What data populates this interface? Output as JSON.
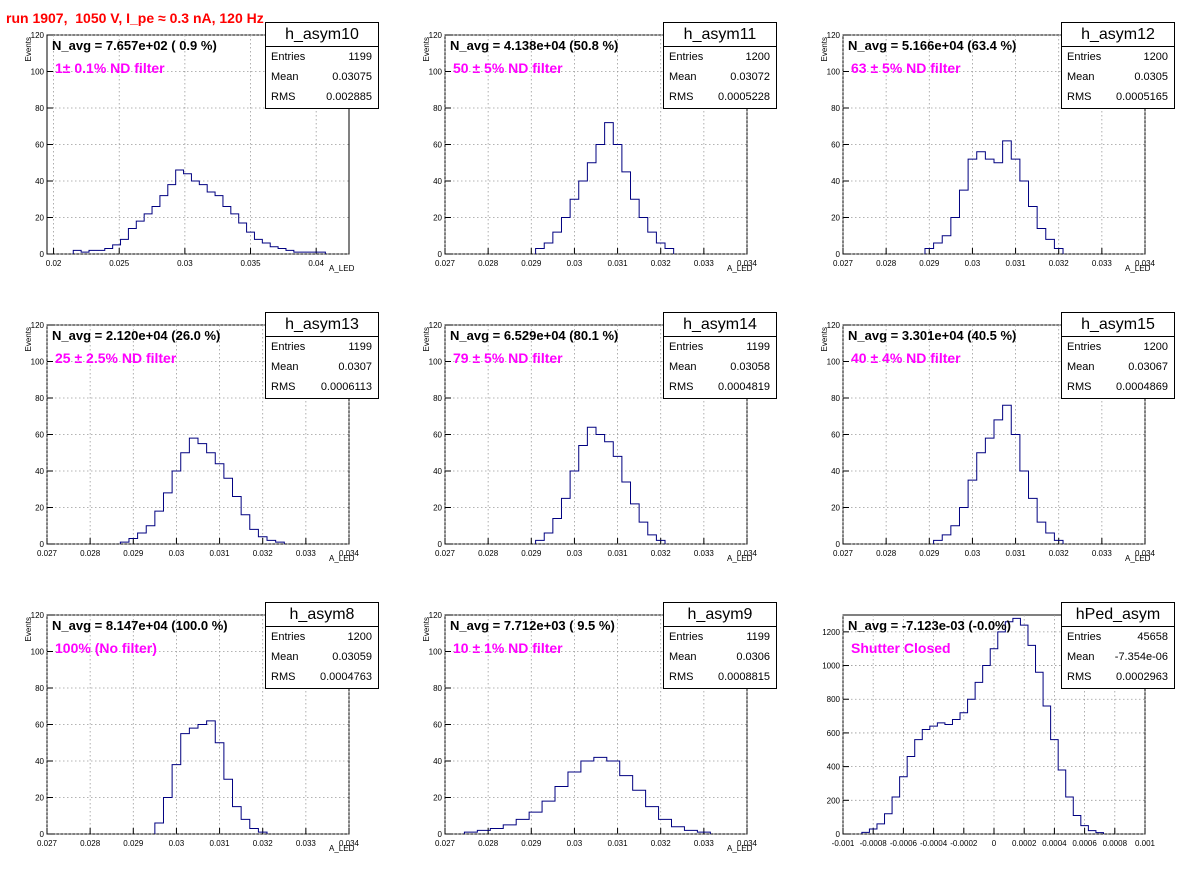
{
  "page": {
    "title": "run 1907,  1050 V, I_pe ≈ 0.3 nA, 120 Hz"
  },
  "stats_labels": {
    "entries": "Entries",
    "mean": "Mean",
    "rms": "RMS"
  },
  "chart_data": [
    {
      "type": "bar",
      "name": "h_asym10",
      "navg": "N_avg = 7.657e+02 ( 0.9 %)",
      "filter": "1± 0.1% ND filter",
      "entries": "1199",
      "mean": "0.03075",
      "rms": "0.002885",
      "xlabel": "A_LED",
      "ylabel": "Events",
      "xlim": [
        0.0195,
        0.0425
      ],
      "ylim": [
        0,
        120
      ],
      "xticks": [
        0.02,
        0.025,
        0.03,
        0.035,
        0.04
      ],
      "xtick_labels": [
        "0.02",
        "0.025",
        "0.03",
        "0.035",
        "0.04"
      ],
      "yticks": [
        0,
        20,
        40,
        60,
        80,
        100,
        120
      ],
      "ytick_labels": [
        "0",
        "20",
        "40",
        "60",
        "80",
        "100",
        "120"
      ],
      "x": [
        0.0218,
        0.0224,
        0.023,
        0.0236,
        0.0242,
        0.0248,
        0.0254,
        0.026,
        0.0266,
        0.0272,
        0.0278,
        0.0284,
        0.029,
        0.0296,
        0.0302,
        0.0308,
        0.0314,
        0.032,
        0.0326,
        0.0332,
        0.0338,
        0.0344,
        0.035,
        0.0356,
        0.0362,
        0.0368,
        0.0374,
        0.038,
        0.0386,
        0.0392,
        0.0398,
        0.0404
      ],
      "values": [
        2,
        1,
        2,
        2,
        3,
        5,
        8,
        14,
        18,
        22,
        26,
        32,
        38,
        46,
        44,
        40,
        38,
        34,
        32,
        26,
        22,
        17,
        12,
        8,
        6,
        4,
        3,
        2,
        1,
        1,
        1,
        1
      ]
    },
    {
      "type": "bar",
      "name": "h_asym11",
      "navg": "N_avg = 4.138e+04 (50.8 %)",
      "filter": "50 ± 5% ND filter",
      "entries": "1200",
      "mean": "0.03072",
      "rms": "0.0005228",
      "xlabel": "A_LED",
      "ylabel": "Events",
      "xlim": [
        0.027,
        0.034
      ],
      "ylim": [
        0,
        120
      ],
      "xticks": [
        0.027,
        0.028,
        0.029,
        0.03,
        0.031,
        0.032,
        0.033,
        0.034
      ],
      "xtick_labels": [
        "0.027",
        "0.028",
        "0.029",
        "0.03",
        "0.031",
        "0.032",
        "0.033",
        "0.034"
      ],
      "yticks": [
        0,
        20,
        40,
        60,
        80,
        100,
        120
      ],
      "ytick_labels": [
        "0",
        "20",
        "40",
        "60",
        "80",
        "100",
        "120"
      ],
      "x": [
        0.0292,
        0.0294,
        0.0296,
        0.0298,
        0.03,
        0.0302,
        0.0304,
        0.0306,
        0.0308,
        0.031,
        0.0312,
        0.0314,
        0.0316,
        0.0318,
        0.032,
        0.0322
      ],
      "values": [
        3,
        6,
        12,
        20,
        30,
        40,
        50,
        60,
        72,
        60,
        45,
        30,
        20,
        12,
        6,
        3
      ]
    },
    {
      "type": "bar",
      "name": "h_asym12",
      "navg": "N_avg = 5.166e+04 (63.4 %)",
      "filter": "63 ± 5% ND filter",
      "entries": "1200",
      "mean": "0.0305",
      "rms": "0.0005165",
      "xlabel": "A_LED",
      "ylabel": "Events",
      "xlim": [
        0.027,
        0.034
      ],
      "ylim": [
        0,
        120
      ],
      "xticks": [
        0.027,
        0.028,
        0.029,
        0.03,
        0.031,
        0.032,
        0.033,
        0.034
      ],
      "xtick_labels": [
        "0.027",
        "0.028",
        "0.029",
        "0.03",
        "0.031",
        "0.032",
        "0.033",
        "0.034"
      ],
      "yticks": [
        0,
        20,
        40,
        60,
        80,
        100,
        120
      ],
      "ytick_labels": [
        "0",
        "20",
        "40",
        "60",
        "80",
        "100",
        "120"
      ],
      "x": [
        0.029,
        0.0292,
        0.0294,
        0.0296,
        0.0298,
        0.03,
        0.0302,
        0.0304,
        0.0306,
        0.0308,
        0.031,
        0.0312,
        0.0314,
        0.0316,
        0.0318,
        0.032
      ],
      "values": [
        3,
        6,
        10,
        20,
        35,
        52,
        56,
        52,
        50,
        62,
        52,
        40,
        26,
        14,
        8,
        3
      ]
    },
    {
      "type": "bar",
      "name": "h_asym13",
      "navg": "N_avg = 2.120e+04 (26.0 %)",
      "filter": "25 ± 2.5% ND filter",
      "entries": "1199",
      "mean": "0.0307",
      "rms": "0.0006113",
      "xlabel": "A_LED",
      "ylabel": "Events",
      "xlim": [
        0.027,
        0.034
      ],
      "ylim": [
        0,
        120
      ],
      "xticks": [
        0.027,
        0.028,
        0.029,
        0.03,
        0.031,
        0.032,
        0.033,
        0.034
      ],
      "xtick_labels": [
        "0.027",
        "0.028",
        "0.029",
        "0.03",
        "0.031",
        "0.032",
        "0.033",
        "0.034"
      ],
      "yticks": [
        0,
        20,
        40,
        60,
        80,
        100,
        120
      ],
      "ytick_labels": [
        "0",
        "20",
        "40",
        "60",
        "80",
        "100",
        "120"
      ],
      "x": [
        0.0288,
        0.029,
        0.0292,
        0.0294,
        0.0296,
        0.0298,
        0.03,
        0.0302,
        0.0304,
        0.0306,
        0.0308,
        0.031,
        0.0312,
        0.0314,
        0.0316,
        0.0318,
        0.032,
        0.0322,
        0.0324
      ],
      "values": [
        1,
        3,
        6,
        10,
        18,
        28,
        40,
        50,
        58,
        55,
        50,
        44,
        36,
        26,
        16,
        8,
        4,
        2,
        1
      ]
    },
    {
      "type": "bar",
      "name": "h_asym14",
      "navg": "N_avg = 6.529e+04 (80.1 %)",
      "filter": "79 ± 5% ND filter",
      "entries": "1199",
      "mean": "0.03058",
      "rms": "0.0004819",
      "xlabel": "A_LED",
      "ylabel": "Events",
      "xlim": [
        0.027,
        0.034
      ],
      "ylim": [
        0,
        120
      ],
      "xticks": [
        0.027,
        0.028,
        0.029,
        0.03,
        0.031,
        0.032,
        0.033,
        0.034
      ],
      "xtick_labels": [
        "0.027",
        "0.028",
        "0.029",
        "0.03",
        "0.031",
        "0.032",
        "0.033",
        "0.034"
      ],
      "yticks": [
        0,
        20,
        40,
        60,
        80,
        100,
        120
      ],
      "ytick_labels": [
        "0",
        "20",
        "40",
        "60",
        "80",
        "100",
        "120"
      ],
      "x": [
        0.0292,
        0.0294,
        0.0296,
        0.0298,
        0.03,
        0.0302,
        0.0304,
        0.0306,
        0.0308,
        0.031,
        0.0312,
        0.0314,
        0.0316,
        0.0318,
        0.032
      ],
      "values": [
        2,
        6,
        14,
        25,
        40,
        54,
        64,
        60,
        56,
        48,
        34,
        22,
        12,
        5,
        2
      ]
    },
    {
      "type": "bar",
      "name": "h_asym15",
      "navg": "N_avg = 3.301e+04 (40.5 %)",
      "filter": "40 ± 4% ND filter",
      "entries": "1200",
      "mean": "0.03067",
      "rms": "0.0004869",
      "xlabel": "A_LED",
      "ylabel": "Events",
      "xlim": [
        0.027,
        0.034
      ],
      "ylim": [
        0,
        120
      ],
      "xticks": [
        0.027,
        0.028,
        0.029,
        0.03,
        0.031,
        0.032,
        0.033,
        0.034
      ],
      "xtick_labels": [
        "0.027",
        "0.028",
        "0.029",
        "0.03",
        "0.031",
        "0.032",
        "0.033",
        "0.034"
      ],
      "yticks": [
        0,
        20,
        40,
        60,
        80,
        100,
        120
      ],
      "ytick_labels": [
        "0",
        "20",
        "40",
        "60",
        "80",
        "100",
        "120"
      ],
      "x": [
        0.0292,
        0.0294,
        0.0296,
        0.0298,
        0.03,
        0.0302,
        0.0304,
        0.0306,
        0.0308,
        0.031,
        0.0312,
        0.0314,
        0.0316,
        0.0318,
        0.032
      ],
      "values": [
        2,
        5,
        10,
        20,
        35,
        50,
        58,
        68,
        76,
        60,
        40,
        25,
        12,
        6,
        2
      ]
    },
    {
      "type": "bar",
      "name": "h_asym8",
      "navg": "N_avg = 8.147e+04 (100.0 %)",
      "filter": "100% (No filter)",
      "entries": "1200",
      "mean": "0.03059",
      "rms": "0.0004763",
      "xlabel": "A_LED",
      "ylabel": "Events",
      "xlim": [
        0.027,
        0.034
      ],
      "ylim": [
        0,
        120
      ],
      "xticks": [
        0.027,
        0.028,
        0.029,
        0.03,
        0.031,
        0.032,
        0.033,
        0.034
      ],
      "xtick_labels": [
        "0.027",
        "0.028",
        "0.029",
        "0.03",
        "0.031",
        "0.032",
        "0.033",
        "0.034"
      ],
      "yticks": [
        0,
        20,
        40,
        60,
        80,
        100,
        120
      ],
      "ytick_labels": [
        "0",
        "20",
        "40",
        "60",
        "80",
        "100",
        "120"
      ],
      "x": [
        0.0296,
        0.0298,
        0.03,
        0.0302,
        0.0304,
        0.0306,
        0.0308,
        0.031,
        0.0312,
        0.0314,
        0.0316,
        0.0318,
        0.032
      ],
      "values": [
        6,
        20,
        38,
        55,
        58,
        60,
        62,
        50,
        30,
        15,
        8,
        3,
        1
      ]
    },
    {
      "type": "bar",
      "name": "h_asym9",
      "navg": "N_avg = 7.712e+03 ( 9.5 %)",
      "filter": "10 ± 1% ND filter",
      "entries": "1199",
      "mean": "0.0306",
      "rms": "0.0008815",
      "xlabel": "A_LED",
      "ylabel": "Events",
      "xlim": [
        0.027,
        0.034
      ],
      "ylim": [
        0,
        120
      ],
      "xticks": [
        0.027,
        0.028,
        0.029,
        0.03,
        0.031,
        0.032,
        0.033,
        0.034
      ],
      "xtick_labels": [
        "0.027",
        "0.028",
        "0.029",
        "0.03",
        "0.031",
        "0.032",
        "0.033",
        "0.034"
      ],
      "yticks": [
        0,
        20,
        40,
        60,
        80,
        100,
        120
      ],
      "ytick_labels": [
        "0",
        "20",
        "40",
        "60",
        "80",
        "100",
        "120"
      ],
      "x": [
        0.0276,
        0.0279,
        0.0282,
        0.0285,
        0.0288,
        0.0291,
        0.0294,
        0.0297,
        0.03,
        0.0303,
        0.0306,
        0.0309,
        0.0312,
        0.0315,
        0.0318,
        0.0321,
        0.0324,
        0.0327,
        0.033
      ],
      "values": [
        1,
        2,
        3,
        5,
        8,
        12,
        18,
        26,
        34,
        40,
        42,
        40,
        32,
        24,
        15,
        8,
        4,
        2,
        1
      ]
    },
    {
      "type": "bar",
      "name": "hPed_asym",
      "navg": "N_avg = -7.123e-03 (-0.0%)",
      "filter": "Shutter Closed",
      "entries": "45658",
      "mean": "-7.354e-06",
      "rms": "0.0002963",
      "xlabel": "",
      "ylabel": "",
      "xlim": [
        -0.001,
        0.001
      ],
      "ylim": [
        0,
        1300
      ],
      "xticks": [
        -0.001,
        -0.0008,
        -0.0006,
        -0.0004,
        -0.0002,
        0,
        0.0002,
        0.0004,
        0.0006,
        0.0008,
        0.001
      ],
      "xtick_labels": [
        "-0.001",
        "-0.0008",
        "-0.0006",
        "-0.0004",
        "-0.0002",
        "0",
        "0.0002",
        "0.0004",
        "0.0006",
        "0.0008",
        "0.001"
      ],
      "yticks": [
        0,
        200,
        400,
        600,
        800,
        1000,
        1200
      ],
      "ytick_labels": [
        "0",
        "200",
        "400",
        "600",
        "800",
        "1000",
        "1200"
      ],
      "x": [
        -0.00085,
        -0.0008,
        -0.00075,
        -0.0007,
        -0.00065,
        -0.0006,
        -0.00055,
        -0.0005,
        -0.00045,
        -0.0004,
        -0.00035,
        -0.0003,
        -0.00025,
        -0.0002,
        -0.00015,
        -0.0001,
        -5e-05,
        0,
        5e-05,
        0.0001,
        0.00015,
        0.0002,
        0.00025,
        0.0003,
        0.00035,
        0.0004,
        0.00045,
        0.0005,
        0.00055,
        0.0006,
        0.00065,
        0.0007
      ],
      "values": [
        10,
        30,
        60,
        120,
        220,
        340,
        460,
        560,
        620,
        640,
        660,
        650,
        680,
        720,
        800,
        900,
        1000,
        1100,
        1200,
        1260,
        1280,
        1240,
        1120,
        960,
        760,
        560,
        380,
        220,
        110,
        50,
        20,
        8
      ]
    }
  ]
}
